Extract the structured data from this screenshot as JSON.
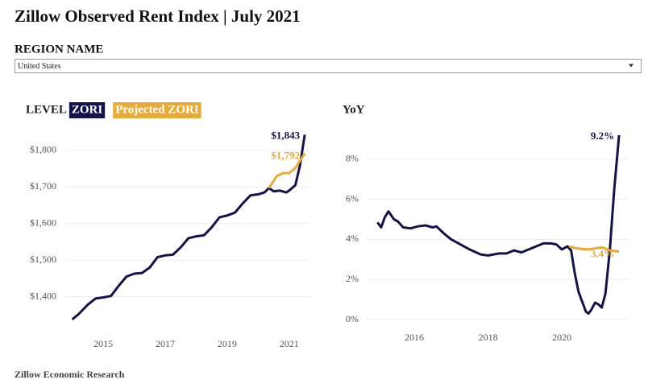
{
  "header": {
    "title": "Zillow Observed Rent Index | July 2021",
    "region_label": "REGION NAME",
    "region_value": "United States"
  },
  "footer": "Zillow Economic Research",
  "chart_data": [
    {
      "type": "line",
      "title": "LEVEL",
      "series": [
        {
          "name": "ZORI",
          "color": "#15134b",
          "x": [
            2014.0,
            2014.2,
            2014.5,
            2014.75,
            2015.0,
            2015.25,
            2015.5,
            2015.75,
            2016.0,
            2016.25,
            2016.5,
            2016.75,
            2017.0,
            2017.25,
            2017.5,
            2017.75,
            2018.0,
            2018.25,
            2018.5,
            2018.75,
            2019.0,
            2019.25,
            2019.5,
            2019.75,
            2020.0,
            2020.2,
            2020.35,
            2020.5,
            2020.7,
            2020.9,
            2021.0,
            2021.2,
            2021.35,
            2021.5
          ],
          "values": [
            1338,
            1352,
            1378,
            1395,
            1398,
            1402,
            1430,
            1455,
            1463,
            1465,
            1480,
            1508,
            1513,
            1515,
            1535,
            1560,
            1565,
            1568,
            1590,
            1617,
            1622,
            1630,
            1655,
            1677,
            1680,
            1685,
            1697,
            1688,
            1690,
            1685,
            1690,
            1705,
            1760,
            1843
          ],
          "value_labels": [
            null,
            null,
            null,
            null,
            null,
            null,
            null,
            null,
            null,
            null,
            null,
            null,
            null,
            null,
            null,
            null,
            null,
            null,
            null,
            null,
            null,
            null,
            null,
            null,
            null,
            null,
            null,
            null,
            null,
            null,
            null,
            null,
            null,
            "$1,843"
          ]
        },
        {
          "name": "Projected ZORI",
          "color": "#e8ab38",
          "x": [
            2020.35,
            2020.6,
            2020.8,
            2021.0,
            2021.2,
            2021.5
          ],
          "values": [
            1697,
            1730,
            1738,
            1738,
            1752,
            1792
          ],
          "value_labels": [
            null,
            null,
            null,
            null,
            null,
            "$1,792"
          ]
        }
      ],
      "xlim": [
        2013.75,
        2021.68
      ],
      "xticks": [
        2015,
        2017,
        2019,
        2021
      ],
      "ylim": [
        1320,
        1870
      ],
      "yticks": [
        {
          "value": 1400,
          "label": "$1,400"
        },
        {
          "value": 1500,
          "label": "$1,500"
        },
        {
          "value": 1600,
          "label": "$1,600"
        },
        {
          "value": 1700,
          "label": "$1,700"
        },
        {
          "value": 1800,
          "label": "$1,800"
        }
      ],
      "grid": true
    },
    {
      "type": "line",
      "title": "YoY",
      "series": [
        {
          "name": "ZORI",
          "color": "#15134b",
          "x": [
            2015.0,
            2015.1,
            2015.2,
            2015.3,
            2015.45,
            2015.55,
            2015.7,
            2015.9,
            2016.1,
            2016.3,
            2016.5,
            2016.6,
            2016.8,
            2017.0,
            2017.2,
            2017.5,
            2017.8,
            2018.0,
            2018.3,
            2018.5,
            2018.7,
            2018.9,
            2019.1,
            2019.3,
            2019.5,
            2019.7,
            2019.85,
            2020.0,
            2020.15,
            2020.25,
            2020.35,
            2020.45,
            2020.55,
            2020.65,
            2020.72,
            2020.8,
            2020.9,
            2021.0,
            2021.08,
            2021.18,
            2021.3,
            2021.42,
            2021.55
          ],
          "values": [
            4.85,
            4.6,
            5.1,
            5.4,
            5.0,
            4.9,
            4.6,
            4.55,
            4.65,
            4.7,
            4.6,
            4.65,
            4.3,
            4.0,
            3.8,
            3.5,
            3.25,
            3.2,
            3.3,
            3.3,
            3.45,
            3.35,
            3.5,
            3.65,
            3.8,
            3.8,
            3.75,
            3.5,
            3.65,
            3.45,
            2.3,
            1.4,
            0.9,
            0.4,
            0.3,
            0.5,
            0.85,
            0.75,
            0.6,
            1.3,
            3.5,
            6.5,
            9.2
          ],
          "value_labels": [
            null,
            null,
            null,
            null,
            null,
            null,
            null,
            null,
            null,
            null,
            null,
            null,
            null,
            null,
            null,
            null,
            null,
            null,
            null,
            null,
            null,
            null,
            null,
            null,
            null,
            null,
            null,
            null,
            null,
            null,
            null,
            null,
            null,
            null,
            null,
            null,
            null,
            null,
            null,
            null,
            null,
            null,
            "9.2%"
          ]
        },
        {
          "name": "Projected ZORI",
          "color": "#e8ab38",
          "x": [
            2020.2,
            2020.4,
            2020.7,
            2020.9,
            2021.1,
            2021.3,
            2021.55
          ],
          "values": [
            3.65,
            3.55,
            3.5,
            3.55,
            3.6,
            3.45,
            3.4
          ],
          "value_labels": [
            null,
            null,
            null,
            null,
            null,
            null,
            "3.4%"
          ]
        }
      ],
      "xlim": [
        2014.71,
        2021.81
      ],
      "xticks": [
        2016,
        2018,
        2020
      ],
      "ylim": [
        -0.32,
        9.72
      ],
      "yticks": [
        {
          "value": 0,
          "label": "0%"
        },
        {
          "value": 2,
          "label": "2%"
        },
        {
          "value": 4,
          "label": "4%"
        },
        {
          "value": 6,
          "label": "6%"
        },
        {
          "value": 8,
          "label": "8%"
        }
      ],
      "grid": true
    }
  ]
}
